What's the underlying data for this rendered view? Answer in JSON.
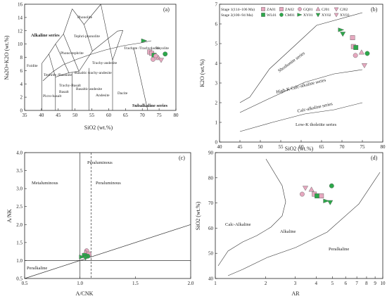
{
  "colors": {
    "pink": "#e6a8bf",
    "green": "#2ca84a",
    "frame": "#222222"
  },
  "chart_data": [
    {
      "type": "scatter",
      "panel_label": "(a)",
      "xlabel": "SiO2 (wt.%)",
      "ylabel": "Na2O+K2O (wt.%)",
      "xlim": [
        35,
        80
      ],
      "ylim": [
        0,
        16
      ],
      "xticks": [
        "35",
        "40",
        "45",
        "50",
        "55",
        "60",
        "65",
        "70",
        "75",
        "80"
      ],
      "yticks": [
        "0",
        "2",
        "4",
        "6",
        "8",
        "10",
        "12",
        "14",
        "16"
      ],
      "field_labels": [
        "Phonolite",
        "Tephri-phonolite",
        "Phono-tephrite",
        "Foidite",
        "Tephrite /Basanite",
        "Trachy-Basalt",
        "Basaltic trachy-andesite",
        "Trachy-andesite",
        "Trachyte /Trachydacite",
        "Rhyolite",
        "Picro-basalt",
        "Basalt",
        "Basaltic andesite",
        "Andesite",
        "Dacite"
      ],
      "series_labels": [
        "Alkaline series",
        "Subalkaline series"
      ],
      "points": [
        {
          "x": 70.6,
          "y": 10.5,
          "m": "xy-green"
        },
        {
          "x": 72.2,
          "y": 8.8,
          "m": "sq-pink"
        },
        {
          "x": 72.8,
          "y": 8.6,
          "m": "sq-pink"
        },
        {
          "x": 73.5,
          "y": 8.3,
          "m": "sq-green"
        },
        {
          "x": 74.0,
          "y": 8.2,
          "m": "ci-pink"
        },
        {
          "x": 74.8,
          "y": 7.9,
          "m": "tri-pink"
        },
        {
          "x": 75.6,
          "y": 7.6,
          "m": "inv-pink"
        },
        {
          "x": 76.8,
          "y": 8.5,
          "m": "ci-green"
        },
        {
          "x": 73.2,
          "y": 7.7,
          "m": "ci-pink"
        }
      ]
    },
    {
      "type": "scatter",
      "panel_label": "(b)",
      "xlabel": "SiO2 (wt.%)",
      "ylabel": "K2O (wt.%)",
      "xlim": [
        40,
        80
      ],
      "ylim": [
        0,
        7
      ],
      "xticks": [
        "40",
        "45",
        "50",
        "55",
        "60",
        "65",
        "70",
        "75",
        "80"
      ],
      "yticks": [
        "0",
        "1",
        "2",
        "3",
        "4",
        "5",
        "6",
        "7"
      ],
      "series_lines": [
        "Shoshonite series",
        "High-K Calc-alkaline series",
        "Calc-alkaline series",
        "Low-K tholeiite series"
      ],
      "legend": {
        "stage1": "Stage 1(114~106 Ma)",
        "stage2": "Stage 2(100~94 Ma)",
        "stage1_items": [
          "ZA01",
          "ZA02",
          "GQ01",
          "CJ01",
          "CJ02"
        ],
        "stage2_items": [
          "WL01",
          "CM01",
          "XY01",
          "XY02",
          "XY03"
        ]
      },
      "points": [
        {
          "x": 69.8,
          "y": 5.7,
          "m": "xy-green"
        },
        {
          "x": 70.2,
          "y": 5.5,
          "m": "inv-green"
        },
        {
          "x": 72.6,
          "y": 5.3,
          "m": "sq-pink"
        },
        {
          "x": 72.8,
          "y": 4.85,
          "m": "sq-pink"
        },
        {
          "x": 73.4,
          "y": 4.8,
          "m": "sq-green"
        },
        {
          "x": 73.3,
          "y": 4.4,
          "m": "ci-pink"
        },
        {
          "x": 74.8,
          "y": 4.55,
          "m": "tri-pink"
        },
        {
          "x": 76.2,
          "y": 4.5,
          "m": "ci-green"
        },
        {
          "x": 75.5,
          "y": 3.9,
          "m": "inv-pink"
        }
      ]
    },
    {
      "type": "scatter",
      "panel_label": "(c)",
      "xlabel": "A/CNK",
      "ylabel": "A/NK",
      "xlim": [
        0.5,
        2.0
      ],
      "ylim": [
        0.5,
        4.0
      ],
      "xticks": [
        "0.5",
        "1.0",
        "1.5",
        "2.0"
      ],
      "yticks": [
        "0.5",
        "1.0",
        "1.5",
        "2.0",
        "2.5",
        "3.0",
        "3.5",
        "4.0"
      ],
      "field_labels": [
        "Metaluminous",
        "Peraluminous",
        "Peraluminous",
        "Peralkaline"
      ],
      "points": [
        {
          "x": 1.06,
          "y": 1.27,
          "m": "ci-pink"
        },
        {
          "x": 1.05,
          "y": 1.22,
          "m": "tri-pink"
        },
        {
          "x": 1.08,
          "y": 1.18,
          "m": "sq-pink"
        },
        {
          "x": 1.04,
          "y": 1.14,
          "m": "sq-green"
        },
        {
          "x": 1.07,
          "y": 1.12,
          "m": "ci-green"
        },
        {
          "x": 1.02,
          "y": 1.1,
          "m": "xy-green"
        },
        {
          "x": 1.05,
          "y": 1.08,
          "m": "inv-green"
        }
      ]
    },
    {
      "type": "scatter",
      "panel_label": "(d)",
      "xlabel": "AR",
      "ylabel": "SiO2 (wt.%)",
      "x_scale": "log",
      "xlim": [
        1,
        10
      ],
      "ylim": [
        40,
        90
      ],
      "xticks": [
        "1",
        "2",
        "3",
        "4",
        "5",
        "6",
        "7",
        "8",
        "9",
        "10"
      ],
      "yticks": [
        "40",
        "50",
        "60",
        "70",
        "80",
        "90"
      ],
      "field_labels": [
        "Calc-Alkaline",
        "Alkaline",
        "Peralkaline"
      ],
      "points": [
        {
          "x": 3.3,
          "y": 73.5,
          "m": "ci-pink"
        },
        {
          "x": 3.45,
          "y": 76.0,
          "m": "inv-pink"
        },
        {
          "x": 3.75,
          "y": 75.3,
          "m": "tri-pink"
        },
        {
          "x": 3.9,
          "y": 73.5,
          "m": "sq-pink"
        },
        {
          "x": 4.05,
          "y": 72.8,
          "m": "sq-green"
        },
        {
          "x": 4.3,
          "y": 72.8,
          "m": "sq-pink"
        },
        {
          "x": 4.95,
          "y": 76.8,
          "m": "ci-green"
        },
        {
          "x": 4.6,
          "y": 70.8,
          "m": "xy-green"
        },
        {
          "x": 4.85,
          "y": 70.3,
          "m": "inv-green"
        }
      ]
    }
  ]
}
